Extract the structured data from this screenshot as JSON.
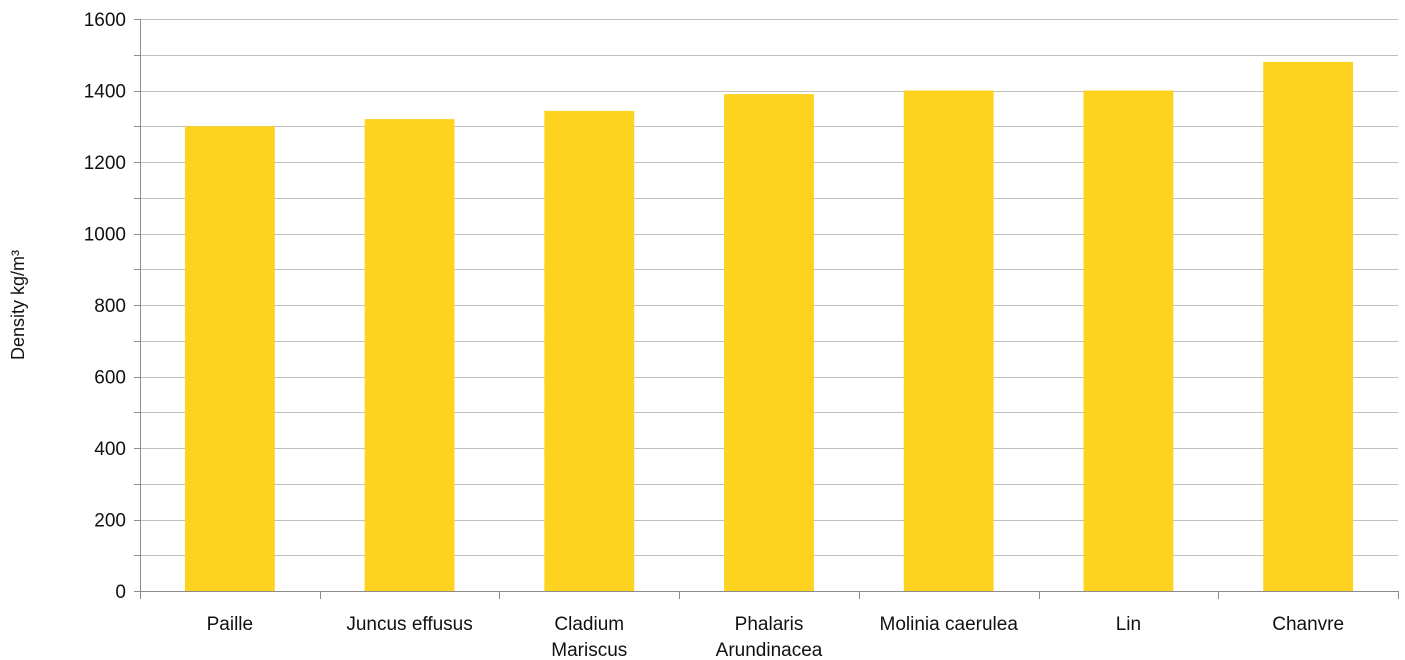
{
  "chart_data": {
    "type": "bar",
    "ylabel": "Density kg/m³",
    "xlabel": "",
    "categories": [
      [
        "Paille"
      ],
      [
        "Juncus effusus"
      ],
      [
        "Cladium",
        "Mariscus"
      ],
      [
        "Phalaris",
        "Arundinacea"
      ],
      [
        "Molinia caerulea"
      ],
      [
        "Lin"
      ],
      [
        "Chanvre"
      ]
    ],
    "values": [
      1300,
      1320,
      1343,
      1390,
      1400,
      1400,
      1480
    ],
    "ylim": [
      0,
      1600
    ],
    "yticks": [
      0,
      200,
      400,
      600,
      800,
      1000,
      1200,
      1400,
      1600
    ],
    "minor_gridlines_step": 100,
    "grid": true,
    "legend": "none",
    "colors": {
      "bar": "#FDD320",
      "grid": "#BFBFBF",
      "axis": "#8C8C8C"
    }
  }
}
